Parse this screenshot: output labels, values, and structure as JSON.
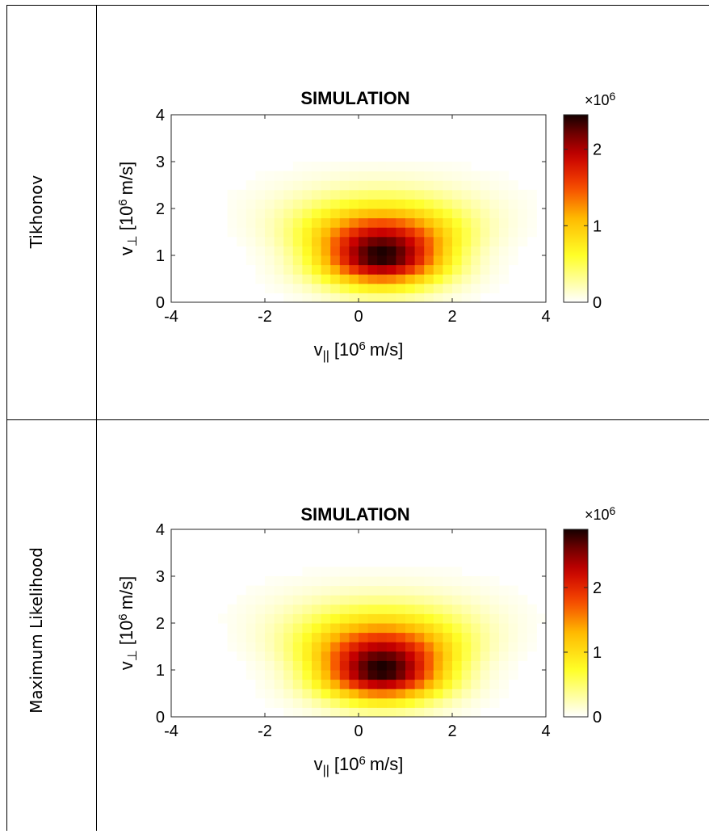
{
  "rows": [
    {
      "label": "Tikhonov",
      "chart_data": {
        "type": "heatmap",
        "title": "SIMULATION",
        "xlabel": {
          "base": "v",
          "sub": "||",
          "unit_prefix": "[10",
          "exponent": "6",
          "unit_suffix": "m/s]"
        },
        "ylabel": {
          "base": "v",
          "sub": "⊥",
          "unit_prefix": "[10",
          "exponent": "6",
          "unit_suffix": "m/s]"
        },
        "xlim": [
          -4,
          4
        ],
        "ylim": [
          0,
          4
        ],
        "xticks": [
          "-4",
          "-2",
          "0",
          "2",
          "4"
        ],
        "yticks": [
          "0",
          "1",
          "2",
          "3",
          "4"
        ],
        "grid_nx": 40,
        "grid_ny": 20,
        "peak": {
          "x": 0.5,
          "y": 1.0,
          "value": 2.45
        },
        "spread": {
          "sx": 0.95,
          "sy_low": 0.45,
          "sy_high": 0.7,
          "tail_x": 0.35
        },
        "colorbar": {
          "multiplier_base": "×10",
          "multiplier_exp": "6",
          "max": 2.45,
          "ticks": [
            "0",
            "1",
            "2"
          ],
          "tick_values": [
            0,
            1,
            2
          ]
        },
        "colormap": "hot"
      }
    },
    {
      "label": "Maximum Likelihood",
      "chart_data": {
        "type": "heatmap",
        "title": "SIMULATION",
        "xlabel": {
          "base": "v",
          "sub": "||",
          "unit_prefix": "[10",
          "exponent": "6",
          "unit_suffix": "m/s]"
        },
        "ylabel": {
          "base": "v",
          "sub": "⊥",
          "unit_prefix": "[10",
          "exponent": "6",
          "unit_suffix": "m/s]"
        },
        "xlim": [
          -4,
          4
        ],
        "ylim": [
          0,
          4
        ],
        "xticks": [
          "-4",
          "-2",
          "0",
          "2",
          "4"
        ],
        "yticks": [
          "0",
          "1",
          "2",
          "3",
          "4"
        ],
        "grid_nx": 40,
        "grid_ny": 20,
        "peak": {
          "x": 0.5,
          "y": 1.0,
          "value": 2.9
        },
        "spread": {
          "sx": 0.95,
          "sy_low": 0.45,
          "sy_high": 0.75,
          "tail_x": 0.35
        },
        "colorbar": {
          "multiplier_base": "×10",
          "multiplier_exp": "6",
          "max": 2.9,
          "ticks": [
            "0",
            "1",
            "2"
          ],
          "tick_values": [
            0,
            1,
            2
          ]
        },
        "colormap": "hot"
      }
    }
  ]
}
